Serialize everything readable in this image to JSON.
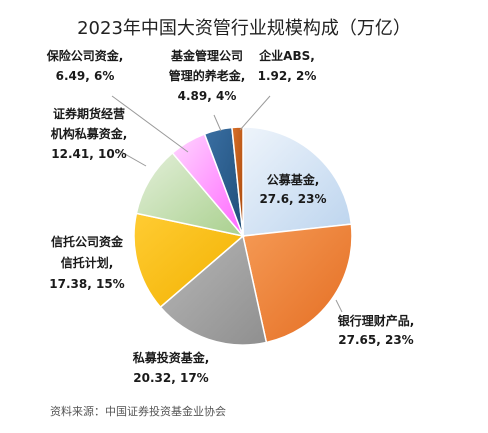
{
  "title": "2023年中国大资管行业规模构成（万亿）",
  "source": "资料来源：中国证券投资基金业协会",
  "chart_data": {
    "type": "pie",
    "title": "2023年中国大资管行业规模构成（万亿）",
    "start_angle_deg": 0,
    "direction": "clockwise",
    "legend": "none",
    "slices": [
      {
        "name": "公募基金",
        "value": 27.6,
        "percent": "23%",
        "color": "#d4e4f5",
        "label_lines": [
          "公募基金,",
          "27.6, 23%"
        ]
      },
      {
        "name": "银行理财产品",
        "value": 27.65,
        "percent": "23%",
        "color": "#ed7d31",
        "label_lines": [
          "银行理财产品,",
          "27.65, 23%"
        ]
      },
      {
        "name": "私募投资基金",
        "value": 20.32,
        "percent": "17%",
        "color": "#a5a5a5",
        "label_lines": [
          "私募投资基金,",
          "20.32, 17%"
        ]
      },
      {
        "name": "信托公司资金信托计划",
        "value": 17.38,
        "percent": "15%",
        "color": "#ffc000",
        "label_lines": [
          "信托公司资金",
          "信托计划,",
          "17.38, 15%"
        ]
      },
      {
        "name": "证券期货经营机构私募资金",
        "value": 12.41,
        "percent": "10%",
        "color": "#c6e0b4",
        "label_lines": [
          "证券期货经营",
          "机构私募资金,",
          "12.41, 10%"
        ]
      },
      {
        "name": "保险公司资金",
        "value": 6.49,
        "percent": "6%",
        "color": "#ff99ff",
        "label_lines": [
          "保险公司资金,",
          "6.49, 6%"
        ]
      },
      {
        "name": "基金管理公司管理的养老金",
        "value": 4.89,
        "percent": "4%",
        "color": "#2e5c8a",
        "label_lines": [
          "基金管理公司",
          "管理的养老金,",
          "4.89, 4%"
        ]
      },
      {
        "name": "企业ABS",
        "value": 1.92,
        "percent": "2%",
        "color": "#c65911",
        "label_lines": [
          "企业ABS,",
          "1.92, 2%"
        ]
      }
    ]
  }
}
